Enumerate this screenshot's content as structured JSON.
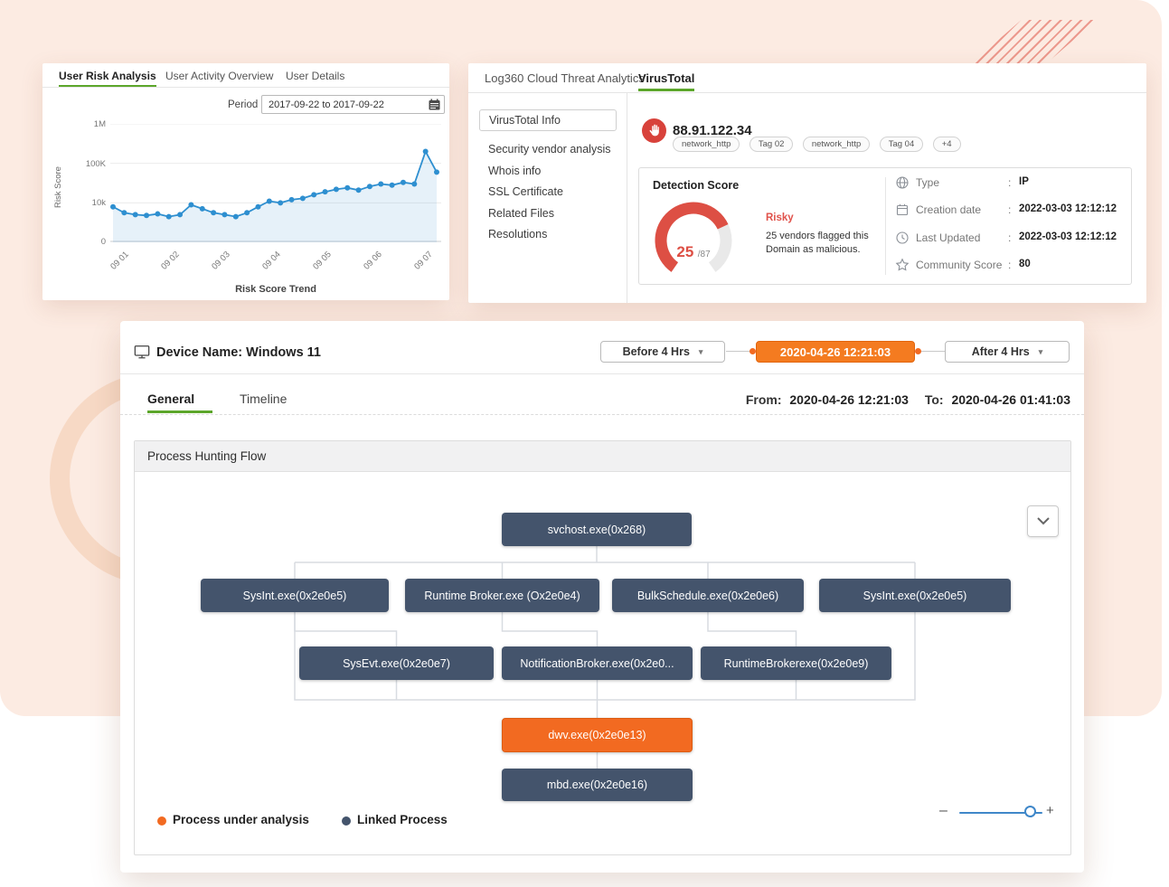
{
  "theme": {
    "background": "#fcebe2",
    "accent_green": "#5ca62b",
    "accent_orange": "#f26a21",
    "node_dark": "#44546c",
    "line_blue": "#2e8fd0",
    "risk_red": "#dd4f44"
  },
  "chart_data": [
    {
      "type": "line",
      "title": "Risk Score Trend",
      "xlabel": "",
      "ylabel": "Risk Score",
      "yscale": "log",
      "ylim": [
        0,
        1000000
      ],
      "yticks": [
        "1M",
        "100K",
        "10k",
        "0"
      ],
      "xticklabels": [
        "09 01",
        "09 02",
        "09 03",
        "09 04",
        "09 05",
        "09 06",
        "09 07"
      ],
      "values": [
        9000,
        7500,
        7000,
        6800,
        7200,
        6500,
        7000,
        9500,
        8500,
        7500,
        7000,
        6500,
        7500,
        9000,
        11000,
        10000,
        12000,
        13000,
        16000,
        19000,
        22000,
        24000,
        21000,
        26000,
        30000,
        28000,
        33000,
        30000,
        200000,
        60000
      ],
      "line_color": "#2e8fd0",
      "fill_color": "rgba(46,143,208,0.12)",
      "grid": true,
      "legend": "none"
    },
    {
      "type": "gauge",
      "title": "Detection Score",
      "value": 25,
      "max": 87,
      "display_value": "25",
      "display_max": "/87",
      "label": "Risky",
      "color": "#dd4f44"
    }
  ],
  "risk_panel": {
    "tabs": [
      {
        "label": "User Risk Analysis"
      },
      {
        "label": "User Activity Overview"
      },
      {
        "label": "User Details"
      }
    ],
    "period_label": "Period",
    "period_value": "2017-09-22  to  2017-09-22"
  },
  "threat_panel": {
    "nav": {
      "app_tab": "Log360 Cloud Threat Analytics",
      "active_tab": "VirusTotal"
    },
    "sidebar": [
      {
        "label": "VirusTotal Info"
      },
      {
        "label": "Security vendor analysis"
      },
      {
        "label": "Whois info"
      },
      {
        "label": "SSL Certificate"
      },
      {
        "label": "Related Files"
      },
      {
        "label": "Resolutions"
      }
    ],
    "ip": "88.91.122.34",
    "tags": [
      "network_http",
      "Tag 02",
      "network_http",
      "Tag 04",
      "+4"
    ],
    "detection": {
      "title": "Detection Score",
      "risk_label": "Risky",
      "description": "25 vendors flagged this Domain as malicious."
    },
    "separator": ":",
    "details": [
      {
        "icon": "globe-icon",
        "label": "Type",
        "value": "IP"
      },
      {
        "icon": "calendar-icon",
        "label": "Creation date",
        "value": "2022-03-03 12:12:12"
      },
      {
        "icon": "clock-icon",
        "label": "Last Updated",
        "value": "2022-03-03 12:12:12"
      },
      {
        "icon": "star-icon",
        "label": "Community Score",
        "value": "80"
      }
    ]
  },
  "device_panel": {
    "title": "Device Name: Windows 11",
    "before_button": "Before 4 Hrs",
    "time_value": "2020-04-26  12:21:03",
    "after_button": "After 4 Hrs",
    "caret": "▾",
    "tabs": [
      {
        "label": "General"
      },
      {
        "label": "Timeline"
      }
    ],
    "from_label": "From:",
    "from_value": "2020-04-26  12:21:03",
    "to_label": "To:",
    "to_value": "2020-04-26  01:41:03",
    "section_title": "Process Hunting Flow",
    "nodes": {
      "root": "svchost.exe(0x268)",
      "r2a": "SysInt.exe(0x2e0e5)",
      "r2b": "Runtime Broker.exe (Ox2e0e4)",
      "r2c": "BulkSchedule.exe(0x2e0e6)",
      "r2d": "SysInt.exe(0x2e0e5)",
      "r3a": "SysEvt.exe(0x2e0e7)",
      "r3b": "NotificationBroker.exe(0x2e0...",
      "r3c": "RuntimeBrokerexe(0x2e0e9)",
      "analysis": "dwv.exe(0x2e0e13)",
      "child": "mbd.exe(0x2e0e16)"
    },
    "legend": [
      {
        "label": "Process under analysis",
        "color": "#f26a21"
      },
      {
        "label": "Linked Process",
        "color": "#44546c"
      }
    ],
    "zoom": {
      "minus": "–",
      "plus": "+"
    }
  }
}
